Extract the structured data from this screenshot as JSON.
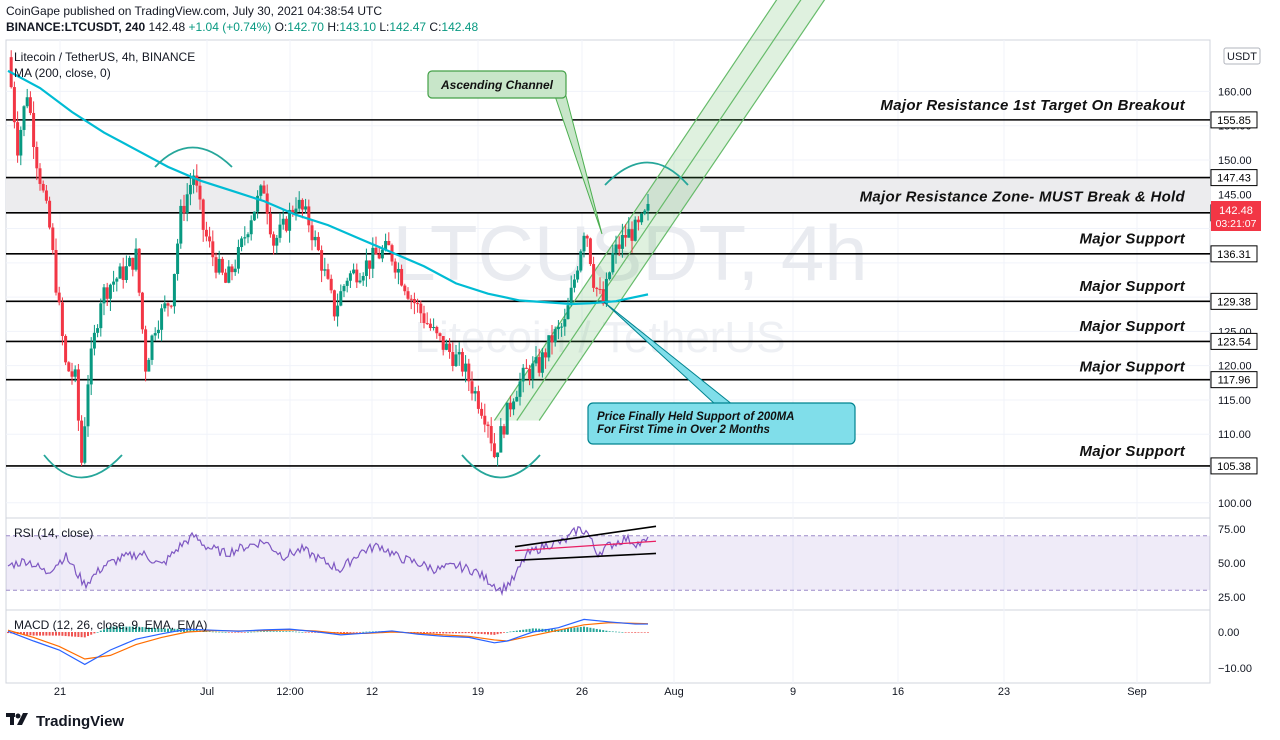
{
  "header": {
    "published": "CoinGape published on TradingView.com, July 30, 2021 04:38:54 UTC",
    "symbol": "BINANCE:LTCUSDT, 240",
    "last": "142.48",
    "change": "+1.04 (+0.74%)",
    "o_label": "O:",
    "o": "142.70",
    "h_label": "H:",
    "h": "143.10",
    "l_label": "L:",
    "l": "142.47",
    "c_label": "C:",
    "c": "142.48"
  },
  "footer": {
    "brand": "TradingView"
  },
  "colors": {
    "up": "#089981",
    "down": "#f23645",
    "ma": "#00bcd4",
    "rsi": "#7e57c2",
    "macd": "#2962ff",
    "signal": "#ff6d00",
    "channel": "#4caf50"
  },
  "chart_data": [
    {
      "type": "candlestick",
      "legend": [
        "Litecoin / TetherUS, 4h, BINANCE",
        "MA (200, close, 0)"
      ],
      "watermark": [
        "LTCUSDT, 4h",
        "Litecoin / TetherUS"
      ],
      "currency_label": "USDT",
      "ylim": [
        97,
        165
      ],
      "y_ticks": [
        100,
        105,
        110,
        115,
        120,
        125,
        130,
        135,
        140,
        145,
        150,
        155,
        160
      ],
      "y_tick_labels": [
        "100.00",
        "105.00",
        "110.00",
        "115.00",
        "120.00",
        "125.00",
        "",
        "",
        "",
        "145.00",
        "150.00",
        "155.00",
        "160.00"
      ],
      "x_ticks": [
        "21",
        "Jul",
        "12:00",
        "12",
        "19",
        "26",
        "Aug",
        "9",
        "16",
        "23",
        "Sep"
      ],
      "price_path": [
        [
          0,
          165
        ],
        [
          1.5,
          152
        ],
        [
          3,
          160
        ],
        [
          4.5,
          150
        ],
        [
          6.5,
          140
        ],
        [
          8,
          128
        ],
        [
          9,
          120
        ],
        [
          10.5,
          118
        ],
        [
          11.5,
          106
        ],
        [
          12.5,
          118
        ],
        [
          14.5,
          130
        ],
        [
          16,
          132
        ],
        [
          18.5,
          134
        ],
        [
          20,
          136
        ],
        [
          21.5,
          120
        ],
        [
          23,
          126
        ],
        [
          25.5,
          130
        ],
        [
          27,
          142
        ],
        [
          29,
          148
        ],
        [
          30.5,
          140
        ],
        [
          32,
          136
        ],
        [
          34,
          132
        ],
        [
          36,
          136
        ],
        [
          38,
          142
        ],
        [
          40,
          146
        ],
        [
          41.5,
          138
        ],
        [
          43,
          140
        ],
        [
          45,
          144
        ],
        [
          47,
          141
        ],
        [
          49,
          135
        ],
        [
          51,
          128
        ],
        [
          53,
          133
        ],
        [
          55,
          134
        ],
        [
          57.5,
          136
        ],
        [
          59.5,
          137
        ],
        [
          61,
          134
        ],
        [
          63,
          130
        ],
        [
          65,
          127
        ],
        [
          67,
          124
        ],
        [
          69,
          122
        ],
        [
          71,
          120
        ],
        [
          73,
          116
        ],
        [
          75,
          112
        ],
        [
          76,
          107
        ],
        [
          77,
          110
        ],
        [
          79,
          116
        ],
        [
          81,
          119
        ],
        [
          83,
          120
        ],
        [
          85,
          124
        ],
        [
          87,
          126
        ],
        [
          88.8,
          134
        ],
        [
          90.2,
          141
        ],
        [
          91.6,
          132
        ],
        [
          93,
          129
        ],
        [
          94.5,
          136
        ],
        [
          96.5,
          139
        ],
        [
          98.5,
          140
        ],
        [
          100,
          142.48
        ]
      ],
      "ma200": [
        [
          0,
          163
        ],
        [
          5,
          160.5
        ],
        [
          10,
          157
        ],
        [
          15,
          154
        ],
        [
          20,
          151.5
        ],
        [
          25,
          149
        ],
        [
          30,
          147
        ],
        [
          35,
          145.5
        ],
        [
          40,
          144
        ],
        [
          45,
          142
        ],
        [
          50,
          140.5
        ],
        [
          55,
          138.5
        ],
        [
          60,
          136.5
        ],
        [
          65,
          134.5
        ],
        [
          70,
          132
        ],
        [
          75,
          130.5
        ],
        [
          80,
          129.5
        ],
        [
          85,
          129.2
        ],
        [
          88,
          129
        ],
        [
          91,
          129.1
        ],
        [
          95,
          129.4
        ],
        [
          100,
          130.4
        ]
      ],
      "levels": [
        {
          "value": 155.85,
          "label": "155.85"
        },
        {
          "value": 147.43,
          "label": "147.43"
        },
        {
          "value": 142.29,
          "label": "142.29"
        },
        {
          "value": 136.31,
          "label": "136.31"
        },
        {
          "value": 129.38,
          "label": "129.38"
        },
        {
          "value": 123.54,
          "label": "123.54"
        },
        {
          "value": 117.96,
          "label": "117.96"
        },
        {
          "value": 105.38,
          "label": "105.38"
        }
      ],
      "last_price_label": "142.48",
      "countdown_label": "03:21:07",
      "annotations": [
        {
          "text": "Major Resistance 1st Target On Breakout",
          "price": 158.2
        },
        {
          "text": "Major Resistance Zone- MUST Break & Hold",
          "price": 144.8
        },
        {
          "text": "Major Support",
          "price": 138.7
        },
        {
          "text": "Major Support",
          "price": 131.8
        },
        {
          "text": "Major Support",
          "price": 125.9
        },
        {
          "text": "Major Support",
          "price": 120.0
        },
        {
          "text": "Major Support",
          "price": 107.7
        }
      ],
      "callouts": [
        {
          "text": [
            "Ascending Channel"
          ]
        },
        {
          "text": [
            "Price Finally Held Support of 200MA",
            "For First Time in Over 2 Months"
          ]
        }
      ]
    },
    {
      "type": "line",
      "legend": "RSI (14, close)",
      "ylim": [
        20,
        80
      ],
      "y_ticks": [
        25,
        50,
        75
      ],
      "y_tick_labels": [
        "25.00",
        "50.00",
        "75.00"
      ],
      "band": [
        30,
        70
      ],
      "values": [
        [
          0,
          48
        ],
        [
          3,
          52
        ],
        [
          6,
          43
        ],
        [
          9,
          55
        ],
        [
          12,
          34
        ],
        [
          15,
          48
        ],
        [
          18,
          54
        ],
        [
          21,
          57
        ],
        [
          24,
          48
        ],
        [
          27,
          63
        ],
        [
          29,
          70
        ],
        [
          31,
          62
        ],
        [
          34,
          57
        ],
        [
          37,
          62
        ],
        [
          40,
          66
        ],
        [
          43,
          55
        ],
        [
          46,
          60
        ],
        [
          49,
          52
        ],
        [
          52,
          45
        ],
        [
          55,
          58
        ],
        [
          58,
          63
        ],
        [
          61,
          54
        ],
        [
          64,
          50
        ],
        [
          67,
          45
        ],
        [
          70,
          48
        ],
        [
          73,
          44
        ],
        [
          76,
          34
        ],
        [
          77,
          30
        ],
        [
          79,
          38
        ],
        [
          81,
          56
        ],
        [
          84,
          63
        ],
        [
          87,
          66
        ],
        [
          89,
          75
        ],
        [
          90.5,
          73
        ],
        [
          92,
          57
        ],
        [
          94,
          63
        ],
        [
          96.5,
          68
        ],
        [
          98.5,
          64
        ],
        [
          100,
          66
        ]
      ]
    },
    {
      "type": "line",
      "legend": "MACD (12, 26, close, 9, EMA, EMA)",
      "ylim": [
        -13,
        5
      ],
      "y_ticks": [
        -10,
        0
      ],
      "y_tick_labels": [
        "−10.00",
        "0.00"
      ],
      "series": [
        {
          "name": "MACD",
          "values": [
            [
              0,
              0.2
            ],
            [
              4,
              -2.5
            ],
            [
              8,
              -5
            ],
            [
              12,
              -9
            ],
            [
              16,
              -5
            ],
            [
              20,
              -2
            ],
            [
              24,
              -0.5
            ],
            [
              28,
              0.8
            ],
            [
              32,
              0.5
            ],
            [
              36,
              0.2
            ],
            [
              40,
              0.6
            ],
            [
              44,
              0.8
            ],
            [
              48,
              0.1
            ],
            [
              52,
              -0.8
            ],
            [
              56,
              -0.3
            ],
            [
              60,
              0.3
            ],
            [
              64,
              -0.6
            ],
            [
              68,
              -1.2
            ],
            [
              72,
              -1.5
            ],
            [
              76,
              -3
            ],
            [
              78,
              -2.5
            ],
            [
              82,
              0
            ],
            [
              86,
              1.2
            ],
            [
              90,
              3.5
            ],
            [
              94,
              2.8
            ],
            [
              98,
              2.2
            ],
            [
              100,
              2.2
            ]
          ]
        },
        {
          "name": "Signal",
          "values": [
            [
              0,
              0.5
            ],
            [
              4,
              -1.5
            ],
            [
              8,
              -4
            ],
            [
              12,
              -7.5
            ],
            [
              16,
              -6.5
            ],
            [
              20,
              -3.5
            ],
            [
              24,
              -1.5
            ],
            [
              28,
              0
            ],
            [
              32,
              0.4
            ],
            [
              36,
              0.3
            ],
            [
              40,
              0.4
            ],
            [
              44,
              0.6
            ],
            [
              48,
              0.3
            ],
            [
              52,
              -0.4
            ],
            [
              56,
              -0.4
            ],
            [
              60,
              0
            ],
            [
              64,
              -0.3
            ],
            [
              68,
              -0.8
            ],
            [
              72,
              -1.2
            ],
            [
              76,
              -2.2
            ],
            [
              78,
              -2.5
            ],
            [
              82,
              -1
            ],
            [
              86,
              0.5
            ],
            [
              90,
              2
            ],
            [
              94,
              2.6
            ],
            [
              98,
              2.4
            ],
            [
              100,
              2.3
            ]
          ]
        }
      ]
    }
  ]
}
